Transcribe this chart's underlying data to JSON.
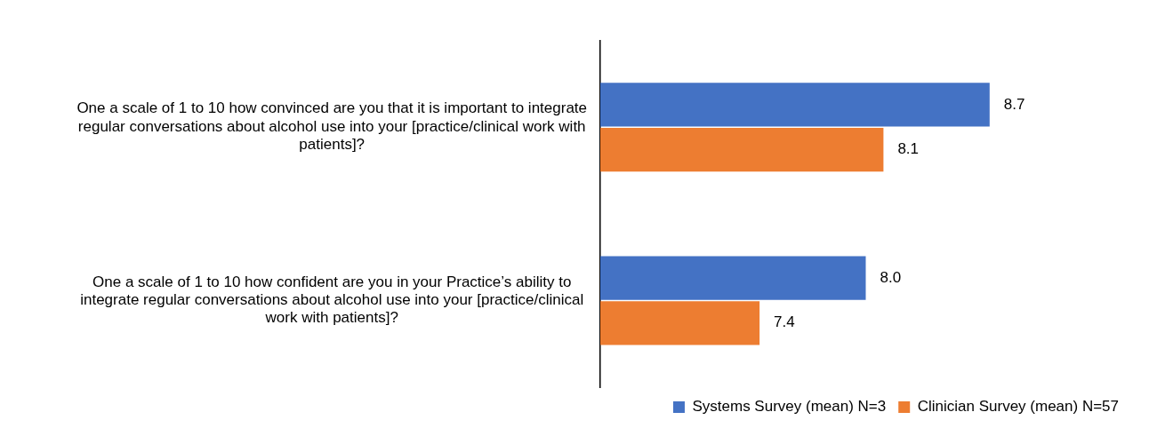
{
  "chart_data": {
    "type": "bar",
    "orientation": "horizontal",
    "categories": [
      "One a scale of 1 to 10 how convinced are you that it is important to integrate regular conversations about alcohol use into your [practice/clinical work with patients]?",
      "One a scale of 1 to 10 how confident are you in your Practice’s ability to integrate regular conversations about alcohol use into your [practice/clinical work with patients]?"
    ],
    "series": [
      {
        "name": "Systems Survey (mean) N=3",
        "color": "#4472c4",
        "values": [
          8.7,
          8.0
        ],
        "value_labels": [
          "8.7",
          "8.0"
        ]
      },
      {
        "name": "Clinician Survey (mean) N=57",
        "color": "#ed7d31",
        "values": [
          8.1,
          7.4
        ],
        "value_labels": [
          "8.1",
          "7.4"
        ]
      }
    ],
    "tick_labels": "y",
    "legend": "bottom right"
  }
}
